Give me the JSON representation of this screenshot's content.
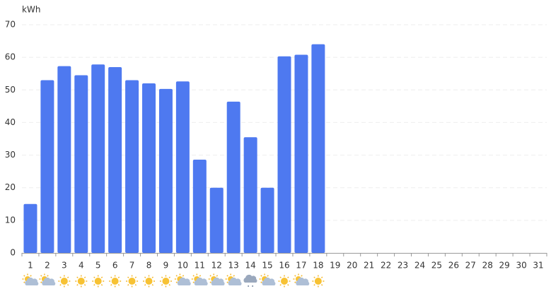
{
  "chart_data": {
    "type": "bar",
    "y_label": "kWh",
    "categories": [
      1,
      2,
      3,
      4,
      5,
      6,
      7,
      8,
      9,
      10,
      11,
      12,
      13,
      14,
      15,
      16,
      17,
      18,
      19,
      20,
      21,
      22,
      23,
      24,
      25,
      26,
      27,
      28,
      29,
      30,
      31
    ],
    "values": [
      15,
      53,
      57.3,
      54.5,
      57.8,
      57,
      53,
      52,
      50.3,
      52.6,
      28.6,
      20,
      46.4,
      35.5,
      20,
      60.3,
      60.8,
      64,
      null,
      null,
      null,
      null,
      null,
      null,
      null,
      null,
      null,
      null,
      null,
      null,
      null
    ],
    "color": "#4e79f0",
    "ylim": [
      0,
      70
    ],
    "yticks": [
      0,
      10,
      20,
      30,
      40,
      50,
      60,
      70
    ],
    "grid": true
  }
}
